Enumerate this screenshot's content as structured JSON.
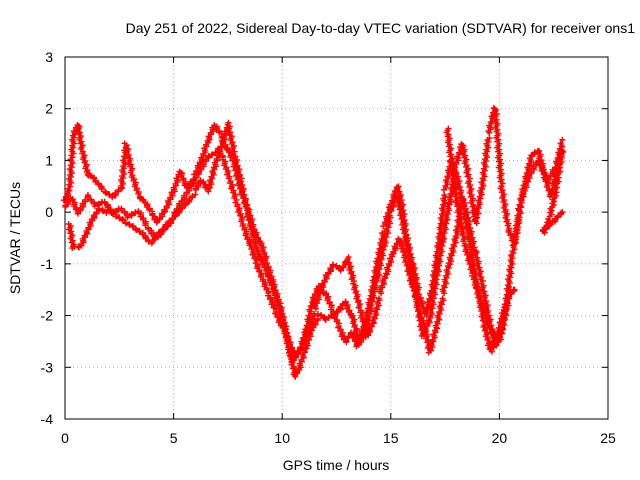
{
  "chart_data": {
    "type": "scatter",
    "title": "Day 251 of 2022, Sidereal Day-to-day VTEC variation (SDTVAR) for receiver ons1",
    "xlabel": "GPS time / hours",
    "ylabel": "SDTVAR / TECUs",
    "xlim": [
      0,
      25
    ],
    "ylim": [
      -4,
      3
    ],
    "xticks": [
      "0",
      "5",
      "10",
      "15",
      "20",
      "25"
    ],
    "yticks": [
      "-4",
      "-3",
      "-2",
      "-1",
      "0",
      "1",
      "2",
      "3"
    ],
    "grid": true,
    "marker": "plus",
    "color": "#ff0000",
    "series": [
      {
        "values": [
          [
            0.0,
            0.2
          ],
          [
            0.2,
            0.4
          ],
          [
            0.4,
            1.5
          ],
          [
            0.6,
            1.7
          ],
          [
            0.8,
            1.2
          ],
          [
            1.1,
            0.7
          ],
          [
            1.4,
            0.6
          ],
          [
            1.8,
            0.4
          ],
          [
            2.2,
            0.3
          ],
          [
            2.6,
            0.5
          ],
          [
            2.8,
            1.3
          ],
          [
            3.1,
            0.7
          ],
          [
            3.4,
            0.3
          ],
          [
            3.7,
            0.2
          ],
          [
            4.0,
            0.0
          ],
          [
            4.3,
            -0.2
          ],
          [
            4.6,
            0.0
          ],
          [
            5.0,
            0.4
          ],
          [
            5.3,
            0.8
          ],
          [
            5.6,
            0.5
          ],
          [
            6.0,
            0.7
          ],
          [
            6.3,
            1.0
          ],
          [
            6.6,
            1.4
          ],
          [
            6.9,
            1.7
          ],
          [
            7.2,
            1.5
          ],
          [
            7.5,
            1.2
          ],
          [
            7.8,
            0.9
          ],
          [
            8.1,
            0.4
          ],
          [
            8.4,
            0.1
          ],
          [
            8.7,
            -0.3
          ],
          [
            9.0,
            -0.6
          ],
          [
            9.3,
            -1.0
          ],
          [
            9.6,
            -1.4
          ],
          [
            9.9,
            -1.8
          ],
          [
            10.2,
            -2.3
          ],
          [
            10.4,
            -2.8
          ],
          [
            10.6,
            -3.2
          ],
          [
            10.8,
            -3.0
          ],
          [
            11.1,
            -2.6
          ],
          [
            11.4,
            -2.2
          ],
          [
            11.7,
            -2.0
          ],
          [
            12.0,
            -2.1
          ],
          [
            12.3,
            -2.0
          ],
          [
            12.6,
            -1.9
          ],
          [
            12.9,
            -1.7
          ],
          [
            13.2,
            -2.0
          ],
          [
            13.5,
            -2.5
          ],
          [
            13.8,
            -2.2
          ],
          [
            14.1,
            -1.6
          ],
          [
            14.4,
            -0.9
          ],
          [
            14.7,
            -0.3
          ],
          [
            15.0,
            0.1
          ],
          [
            15.3,
            0.5
          ],
          [
            15.5,
            0.2
          ],
          [
            15.7,
            -0.4
          ],
          [
            16.0,
            -1.0
          ],
          [
            16.3,
            -1.6
          ],
          [
            16.6,
            -2.0
          ],
          [
            16.9,
            -1.5
          ],
          [
            17.2,
            -0.6
          ],
          [
            17.5,
            0.4
          ],
          [
            17.8,
            1.0
          ],
          [
            18.1,
            0.6
          ],
          [
            18.4,
            0.0
          ],
          [
            18.7,
            -0.7
          ],
          [
            19.0,
            -1.5
          ],
          [
            19.3,
            -2.2
          ],
          [
            19.6,
            -2.7
          ],
          [
            19.9,
            -2.4
          ],
          [
            20.2,
            -1.9
          ],
          [
            20.5,
            -1.5
          ]
        ]
      },
      {
        "values": [
          [
            0.0,
            0.1
          ],
          [
            0.3,
            0.3
          ],
          [
            0.6,
            0.0
          ],
          [
            1.0,
            0.3
          ],
          [
            1.4,
            0.1
          ],
          [
            1.8,
            0.2
          ],
          [
            2.2,
            0.0
          ],
          [
            2.6,
            0.1
          ],
          [
            3.0,
            -0.1
          ],
          [
            3.4,
            0.0
          ],
          [
            3.8,
            -0.3
          ],
          [
            4.2,
            -0.5
          ],
          [
            4.6,
            -0.3
          ],
          [
            5.0,
            -0.1
          ],
          [
            5.4,
            0.2
          ],
          [
            5.8,
            0.5
          ],
          [
            6.2,
            0.8
          ],
          [
            6.6,
            1.1
          ],
          [
            7.0,
            1.2
          ],
          [
            7.3,
            1.0
          ],
          [
            7.6,
            0.6
          ],
          [
            7.9,
            0.2
          ],
          [
            8.2,
            -0.2
          ],
          [
            8.5,
            -0.6
          ],
          [
            8.8,
            -1.0
          ],
          [
            9.1,
            -1.3
          ],
          [
            9.4,
            -1.6
          ],
          [
            9.7,
            -1.9
          ],
          [
            10.0,
            -2.2
          ],
          [
            10.3,
            -2.5
          ],
          [
            10.6,
            -2.8
          ],
          [
            10.9,
            -2.6
          ],
          [
            11.2,
            -2.3
          ],
          [
            11.5,
            -1.9
          ],
          [
            11.8,
            -1.5
          ],
          [
            12.1,
            -1.2
          ],
          [
            12.4,
            -1.0
          ],
          [
            12.7,
            -1.1
          ],
          [
            13.0,
            -0.9
          ],
          [
            13.3,
            -1.4
          ],
          [
            13.6,
            -1.9
          ],
          [
            13.9,
            -2.4
          ],
          [
            14.2,
            -2.1
          ],
          [
            14.5,
            -1.6
          ],
          [
            14.8,
            -1.2
          ],
          [
            15.1,
            -0.8
          ],
          [
            15.4,
            -0.5
          ],
          [
            15.7,
            -0.9
          ],
          [
            16.0,
            -1.4
          ],
          [
            16.3,
            -1.9
          ],
          [
            16.6,
            -2.3
          ],
          [
            16.8,
            -2.7
          ],
          [
            17.1,
            -2.2
          ],
          [
            17.4,
            -1.6
          ],
          [
            17.7,
            -1.0
          ],
          [
            18.0,
            -0.5
          ],
          [
            18.3,
            0.3
          ],
          [
            18.6,
            -0.2
          ],
          [
            18.9,
            -0.8
          ],
          [
            19.2,
            -1.4
          ],
          [
            19.5,
            -2.0
          ],
          [
            19.8,
            -2.6
          ],
          [
            20.1,
            -2.3
          ],
          [
            20.4,
            -1.7
          ],
          [
            20.7,
            -1.5
          ]
        ]
      },
      {
        "values": [
          [
            0.2,
            -0.2
          ],
          [
            0.4,
            -0.7
          ],
          [
            0.7,
            -0.7
          ],
          [
            1.0,
            -0.4
          ],
          [
            1.3,
            -0.1
          ],
          [
            1.6,
            0.1
          ],
          [
            2.0,
            0.0
          ],
          [
            2.4,
            -0.1
          ],
          [
            2.8,
            -0.2
          ],
          [
            3.2,
            -0.3
          ],
          [
            3.6,
            -0.4
          ],
          [
            4.0,
            -0.6
          ],
          [
            4.4,
            -0.4
          ],
          [
            4.8,
            -0.2
          ],
          [
            5.2,
            0.0
          ],
          [
            5.6,
            0.2
          ],
          [
            6.0,
            0.4
          ],
          [
            6.3,
            0.6
          ],
          [
            6.6,
            0.4
          ],
          [
            6.9,
            0.9
          ],
          [
            7.2,
            1.3
          ],
          [
            7.5,
            1.7
          ],
          [
            7.8,
            1.1
          ],
          [
            8.1,
            0.6
          ],
          [
            8.4,
            0.0
          ],
          [
            8.7,
            -0.5
          ],
          [
            9.0,
            -0.9
          ],
          [
            9.3,
            -1.2
          ],
          [
            9.6,
            -1.5
          ],
          [
            9.9,
            -1.9
          ],
          [
            10.2,
            -2.4
          ],
          [
            10.5,
            -2.9
          ],
          [
            10.8,
            -2.7
          ],
          [
            11.1,
            -2.3
          ],
          [
            11.4,
            -1.7
          ],
          [
            11.7,
            -1.4
          ],
          [
            12.0,
            -1.6
          ],
          [
            12.3,
            -1.9
          ],
          [
            12.6,
            -2.2
          ],
          [
            12.9,
            -2.5
          ],
          [
            13.2,
            -2.3
          ],
          [
            13.5,
            -2.6
          ],
          [
            13.8,
            -2.4
          ],
          [
            14.1,
            -1.8
          ],
          [
            14.4,
            -1.2
          ],
          [
            14.7,
            -0.6
          ],
          [
            15.0,
            0.0
          ],
          [
            15.3,
            0.3
          ],
          [
            15.6,
            -0.3
          ],
          [
            15.9,
            -1.0
          ],
          [
            16.2,
            -1.7
          ],
          [
            16.5,
            -2.4
          ],
          [
            16.8,
            -2.1
          ],
          [
            17.1,
            -1.3
          ],
          [
            17.4,
            -0.5
          ],
          [
            17.7,
            0.2
          ],
          [
            18.0,
            0.9
          ],
          [
            18.3,
            1.3
          ],
          [
            18.6,
            0.6
          ],
          [
            18.9,
            -0.2
          ],
          [
            19.2,
            0.5
          ],
          [
            19.5,
            1.5
          ],
          [
            19.8,
            2.0
          ],
          [
            20.1,
            0.5
          ],
          [
            20.4,
            -0.3
          ],
          [
            20.7,
            -0.6
          ],
          [
            21.0,
            0.2
          ],
          [
            21.4,
            0.7
          ],
          [
            21.8,
            1.0
          ],
          [
            22.2,
            0.6
          ],
          [
            22.6,
            0.9
          ],
          [
            22.9,
            1.4
          ]
        ]
      },
      {
        "values": [
          [
            17.6,
            1.6
          ],
          [
            18.0,
            0.3
          ],
          [
            18.4,
            -0.6
          ],
          [
            18.8,
            -1.2
          ],
          [
            19.2,
            -1.8
          ],
          [
            19.6,
            -2.3
          ],
          [
            20.0,
            -2.5
          ],
          [
            20.3,
            -1.8
          ],
          [
            20.6,
            -0.8
          ],
          [
            20.9,
            0.0
          ],
          [
            21.2,
            0.6
          ],
          [
            21.5,
            1.1
          ],
          [
            21.8,
            1.2
          ],
          [
            22.1,
            0.7
          ],
          [
            22.4,
            0.3
          ],
          [
            22.7,
            0.9
          ],
          [
            22.9,
            1.2
          ],
          [
            22.6,
            0.4
          ],
          [
            22.3,
            -0.1
          ],
          [
            22.0,
            -0.4
          ],
          [
            22.5,
            -0.2
          ],
          [
            22.9,
            0.0
          ]
        ]
      }
    ]
  }
}
